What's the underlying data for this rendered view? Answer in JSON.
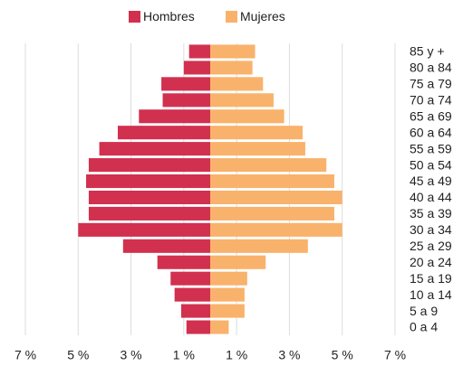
{
  "chart_data": {
    "type": "bar",
    "orientation": "horizontal",
    "categories": [
      "85 y +",
      "80 a 84",
      "75 a 79",
      "70 a 74",
      "65 a 69",
      "60 a 64",
      "55 a 59",
      "50 a 54",
      "45 a 49",
      "40 a 44",
      "35 a 39",
      "30 a 34",
      "25 a 29",
      "20 a 24",
      "15 a 19",
      "10 a 14",
      "5 a 9",
      "0 a 4"
    ],
    "series": [
      {
        "name": "Hombres",
        "color": "#d2304f",
        "values": [
          -0.8,
          -1.0,
          -1.85,
          -1.8,
          -2.7,
          -3.5,
          -4.2,
          -4.6,
          -4.7,
          -4.6,
          -4.6,
          -5.0,
          -3.3,
          -2.0,
          -1.5,
          -1.35,
          -1.1,
          -0.9
        ]
      },
      {
        "name": "Mujeres",
        "color": "#f9b26b",
        "values": [
          1.7,
          1.6,
          2.0,
          2.4,
          2.8,
          3.5,
          3.6,
          4.4,
          4.7,
          5.0,
          4.7,
          5.0,
          3.7,
          2.1,
          1.4,
          1.3,
          1.3,
          0.7
        ]
      }
    ],
    "xlim": [
      -7,
      7
    ],
    "xticks": [
      {
        "value": -7,
        "label": "7 %"
      },
      {
        "value": -5,
        "label": "5 %"
      },
      {
        "value": -3,
        "label": "3 %"
      },
      {
        "value": -1,
        "label": "1 %"
      },
      {
        "value": 1,
        "label": "1 %"
      },
      {
        "value": 3,
        "label": "3 %"
      },
      {
        "value": 5,
        "label": "5 %"
      },
      {
        "value": 7,
        "label": "7 %"
      }
    ],
    "grid": true,
    "legend": "top"
  }
}
